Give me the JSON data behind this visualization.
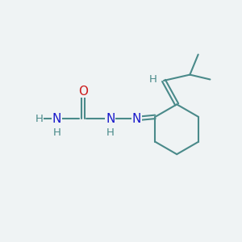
{
  "background_color": "#eff3f4",
  "bond_color": "#4a8a8a",
  "bond_width": 1.5,
  "atom_colors": {
    "N": "#1a1acc",
    "O": "#cc1a1a",
    "C": "#4a8a8a",
    "H": "#4a8a8a"
  },
  "font_size_main": 11,
  "font_size_H": 9.5
}
